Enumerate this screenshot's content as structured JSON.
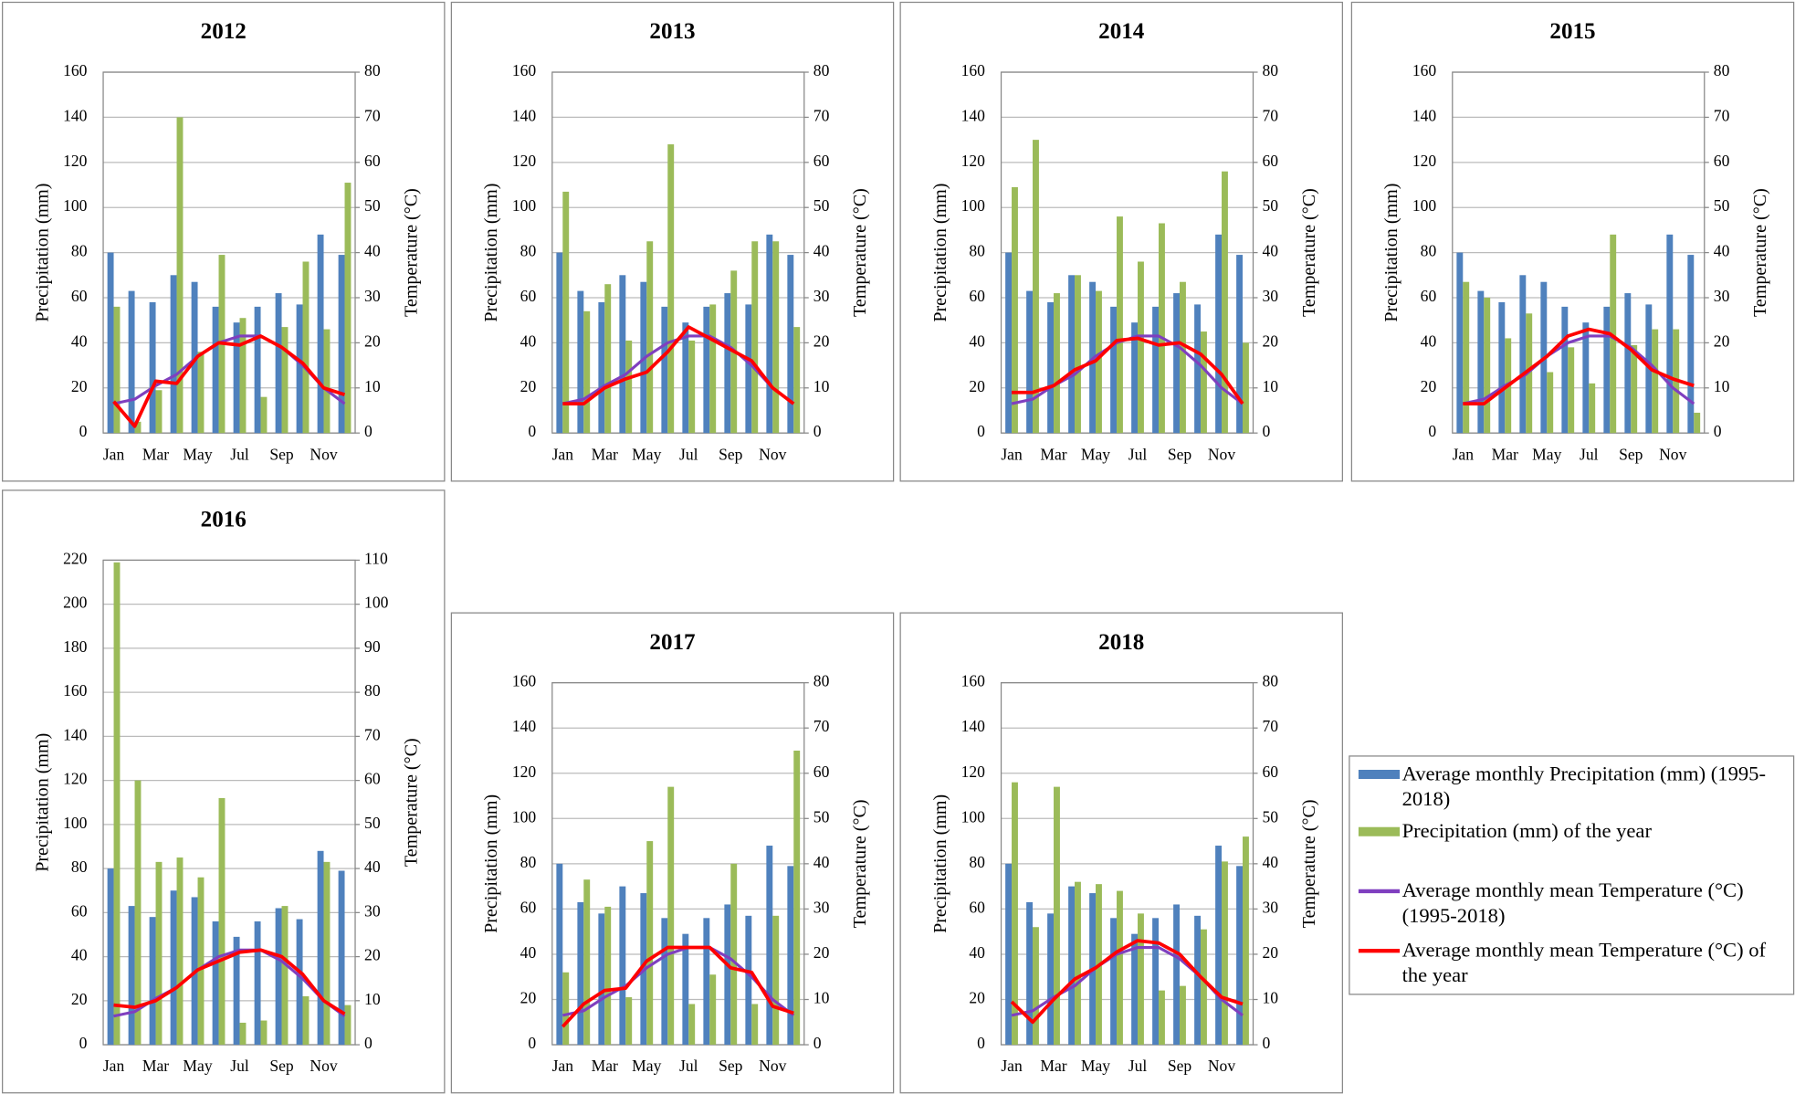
{
  "chart_data": [
    {
      "type": "bar",
      "title": "2012",
      "categories": [
        "Jan",
        null,
        "Mar",
        null,
        "May",
        null,
        "Jul",
        null,
        "Sep",
        null,
        "Nov",
        null
      ],
      "ylabel": "Precipitation (mm)",
      "y2label": "Temperature (°C)",
      "ylim": [
        0,
        160
      ],
      "yticks": [
        0,
        20,
        40,
        60,
        80,
        100,
        120,
        140,
        160
      ],
      "y2lim": [
        0,
        80
      ],
      "y2ticks": [
        0,
        10,
        20,
        30,
        40,
        50,
        60,
        70,
        80
      ],
      "series": [
        {
          "type": "bar",
          "color": "#4f81bd",
          "values": [
            80,
            63,
            58,
            70,
            67,
            56,
            49,
            56,
            62,
            57,
            88,
            79
          ]
        },
        {
          "type": "bar",
          "color": "#9bbb59",
          "values": [
            56,
            5,
            19,
            140,
            36,
            79,
            51,
            16,
            47,
            76,
            46,
            111
          ]
        },
        {
          "type": "line",
          "color": "#7f3fbf",
          "axis": "y2",
          "values": [
            6.5,
            7.5,
            10.5,
            13,
            17,
            20,
            21.5,
            21.5,
            19,
            15,
            10,
            6.5
          ]
        },
        {
          "type": "line",
          "color": "#ff0000",
          "axis": "y2",
          "values": [
            7,
            1.5,
            11.5,
            11,
            17,
            20,
            19.5,
            21.5,
            19,
            15.5,
            10,
            8.5
          ]
        }
      ]
    },
    {
      "type": "bar",
      "title": "2013",
      "categories": [
        "Jan",
        null,
        "Mar",
        null,
        "May",
        null,
        "Jul",
        null,
        "Sep",
        null,
        "Nov",
        null
      ],
      "ylabel": "Precipitation (mm)",
      "y2label": "Temperature (°C)",
      "ylim": [
        0,
        160
      ],
      "yticks": [
        0,
        20,
        40,
        60,
        80,
        100,
        120,
        140,
        160
      ],
      "y2lim": [
        0,
        80
      ],
      "y2ticks": [
        0,
        10,
        20,
        30,
        40,
        50,
        60,
        70,
        80
      ],
      "series": [
        {
          "type": "bar",
          "color": "#4f81bd",
          "values": [
            80,
            63,
            58,
            70,
            67,
            56,
            49,
            56,
            62,
            57,
            88,
            79
          ]
        },
        {
          "type": "bar",
          "color": "#9bbb59",
          "values": [
            107,
            54,
            66,
            41,
            85,
            128,
            41,
            57,
            72,
            85,
            85,
            47
          ]
        },
        {
          "type": "line",
          "color": "#7f3fbf",
          "axis": "y2",
          "values": [
            6.5,
            7.5,
            10.5,
            13,
            17,
            20,
            21.5,
            21.5,
            19,
            15,
            10,
            6.5
          ]
        },
        {
          "type": "line",
          "color": "#ff0000",
          "axis": "y2",
          "values": [
            6.5,
            6.5,
            10,
            12,
            13.5,
            18,
            23.5,
            21,
            18.5,
            16,
            10,
            6.5
          ]
        }
      ]
    },
    {
      "type": "bar",
      "title": "2014",
      "categories": [
        "Jan",
        null,
        "Mar",
        null,
        "May",
        null,
        "Jul",
        null,
        "Sep",
        null,
        "Nov",
        null
      ],
      "ylabel": "Precipitation (mm)",
      "y2label": "Temperature (°C)",
      "ylim": [
        0,
        160
      ],
      "yticks": [
        0,
        20,
        40,
        60,
        80,
        100,
        120,
        140,
        160
      ],
      "y2lim": [
        0,
        80
      ],
      "y2ticks": [
        0,
        10,
        20,
        30,
        40,
        50,
        60,
        70,
        80
      ],
      "series": [
        {
          "type": "bar",
          "color": "#4f81bd",
          "values": [
            80,
            63,
            58,
            70,
            67,
            56,
            49,
            56,
            62,
            57,
            88,
            79
          ]
        },
        {
          "type": "bar",
          "color": "#9bbb59",
          "values": [
            109,
            130,
            62,
            70,
            63,
            96,
            76,
            93,
            67,
            45,
            116,
            40
          ]
        },
        {
          "type": "line",
          "color": "#7f3fbf",
          "axis": "y2",
          "values": [
            6.5,
            7.5,
            10.5,
            13,
            17,
            20,
            21.5,
            21.5,
            19,
            15,
            10,
            6.5
          ]
        },
        {
          "type": "line",
          "color": "#ff0000",
          "axis": "y2",
          "values": [
            9,
            9,
            10.5,
            14,
            16,
            20.5,
            21,
            19.5,
            20,
            17.5,
            13,
            6.5
          ]
        }
      ]
    },
    {
      "type": "bar",
      "title": "2015",
      "categories": [
        "Jan",
        null,
        "Mar",
        null,
        "May",
        null,
        "Jul",
        null,
        "Sep",
        null,
        "Nov",
        null
      ],
      "ylabel": "Precipitation (mm)",
      "y2label": "Temperature (°C)",
      "ylim": [
        0,
        160
      ],
      "yticks": [
        0,
        20,
        40,
        60,
        80,
        100,
        120,
        140,
        160
      ],
      "y2lim": [
        0,
        80
      ],
      "y2ticks": [
        0,
        10,
        20,
        30,
        40,
        50,
        60,
        70,
        80
      ],
      "series": [
        {
          "type": "bar",
          "color": "#4f81bd",
          "values": [
            80,
            63,
            58,
            70,
            67,
            56,
            49,
            56,
            62,
            57,
            88,
            79
          ]
        },
        {
          "type": "bar",
          "color": "#9bbb59",
          "values": [
            67,
            60,
            42,
            53,
            27,
            38,
            22,
            88,
            39,
            46,
            46,
            9
          ]
        },
        {
          "type": "line",
          "color": "#7f3fbf",
          "axis": "y2",
          "values": [
            6.5,
            7.5,
            10.5,
            13,
            17,
            20,
            21.5,
            21.5,
            19,
            15,
            10,
            6.5
          ]
        },
        {
          "type": "line",
          "color": "#ff0000",
          "axis": "y2",
          "values": [
            6.5,
            6.5,
            10,
            13.5,
            17,
            21.5,
            23,
            22,
            18.5,
            14,
            12,
            10.5
          ]
        }
      ]
    },
    {
      "type": "bar",
      "title": "2016",
      "categories": [
        "Jan",
        null,
        "Mar",
        null,
        "May",
        null,
        "Jul",
        null,
        "Sep",
        null,
        "Nov",
        null
      ],
      "ylabel": "Precipitation (mm)",
      "y2label": "Temperature (°C)",
      "ylim": [
        0,
        220
      ],
      "yticks": [
        0,
        20,
        40,
        60,
        80,
        100,
        120,
        140,
        160,
        180,
        200,
        220
      ],
      "y2lim": [
        0,
        110
      ],
      "y2ticks": [
        0,
        10,
        20,
        30,
        40,
        50,
        60,
        70,
        80,
        90,
        100,
        110
      ],
      "series": [
        {
          "type": "bar",
          "color": "#4f81bd",
          "values": [
            80,
            63,
            58,
            70,
            67,
            56,
            49,
            56,
            62,
            57,
            88,
            79
          ]
        },
        {
          "type": "bar",
          "color": "#9bbb59",
          "values": [
            219,
            120,
            83,
            85,
            76,
            112,
            10,
            11,
            63,
            22,
            83,
            18
          ]
        },
        {
          "type": "line",
          "color": "#7f3fbf",
          "axis": "y2",
          "values": [
            6.5,
            7.5,
            10.5,
            13,
            17,
            20,
            21.5,
            21.5,
            19,
            15,
            10,
            6.5
          ]
        },
        {
          "type": "line",
          "color": "#ff0000",
          "axis": "y2",
          "values": [
            9,
            8.5,
            10,
            13,
            17,
            19,
            21,
            21.5,
            20,
            16,
            10,
            7
          ]
        }
      ]
    },
    {
      "type": "bar",
      "title": "2017",
      "categories": [
        "Jan",
        null,
        "Mar",
        null,
        "May",
        null,
        "Jul",
        null,
        "Sep",
        null,
        "Nov",
        null
      ],
      "ylabel": "Precipitation (mm)",
      "y2label": "Temperature (°C)",
      "ylim": [
        0,
        160
      ],
      "yticks": [
        0,
        20,
        40,
        60,
        80,
        100,
        120,
        140,
        160
      ],
      "y2lim": [
        0,
        80
      ],
      "y2ticks": [
        0,
        10,
        20,
        30,
        40,
        50,
        60,
        70,
        80
      ],
      "series": [
        {
          "type": "bar",
          "color": "#4f81bd",
          "values": [
            80,
            63,
            58,
            70,
            67,
            56,
            49,
            56,
            62,
            57,
            88,
            79
          ]
        },
        {
          "type": "bar",
          "color": "#9bbb59",
          "values": [
            32,
            73,
            61,
            21,
            90,
            114,
            18,
            31,
            80,
            18,
            57,
            130
          ]
        },
        {
          "type": "line",
          "color": "#7f3fbf",
          "axis": "y2",
          "values": [
            6.5,
            7.5,
            10.5,
            13,
            17,
            20,
            21.5,
            21.5,
            19,
            15,
            10,
            6.5
          ]
        },
        {
          "type": "line",
          "color": "#ff0000",
          "axis": "y2",
          "values": [
            4,
            9,
            12,
            12.5,
            18.5,
            21.5,
            21.5,
            21.5,
            17,
            16,
            8.5,
            7
          ]
        }
      ]
    },
    {
      "type": "bar",
      "title": "2018",
      "categories": [
        "Jan",
        null,
        "Mar",
        null,
        "May",
        null,
        "Jul",
        null,
        "Sep",
        null,
        "Nov",
        null
      ],
      "ylabel": "Precipitation (mm)",
      "y2label": "Temperature (°C)",
      "ylim": [
        0,
        160
      ],
      "yticks": [
        0,
        20,
        40,
        60,
        80,
        100,
        120,
        140,
        160
      ],
      "y2lim": [
        0,
        80
      ],
      "y2ticks": [
        0,
        10,
        20,
        30,
        40,
        50,
        60,
        70,
        80
      ],
      "series": [
        {
          "type": "bar",
          "color": "#4f81bd",
          "values": [
            80,
            63,
            58,
            70,
            67,
            56,
            49,
            56,
            62,
            57,
            88,
            79
          ]
        },
        {
          "type": "bar",
          "color": "#9bbb59",
          "values": [
            116,
            52,
            114,
            72,
            71,
            68,
            58,
            24,
            26,
            51,
            81,
            92
          ]
        },
        {
          "type": "line",
          "color": "#7f3fbf",
          "axis": "y2",
          "values": [
            6.5,
            7.5,
            10.5,
            13,
            17,
            20,
            21.5,
            21.5,
            19,
            15,
            10,
            6.5
          ]
        },
        {
          "type": "line",
          "color": "#ff0000",
          "axis": "y2",
          "values": [
            9.5,
            5,
            10,
            14.5,
            17,
            20.5,
            23,
            22.5,
            20,
            15,
            10.5,
            9
          ]
        }
      ]
    }
  ],
  "legend": {
    "entries": [
      "Average monthly Precipitation (mm) (1995-2018)",
      "Precipitation (mm) of the year",
      "Average monthly mean Temperature (°C) (1995-2018)",
      "Average monthly mean Temperature (°C) of the year"
    ]
  }
}
